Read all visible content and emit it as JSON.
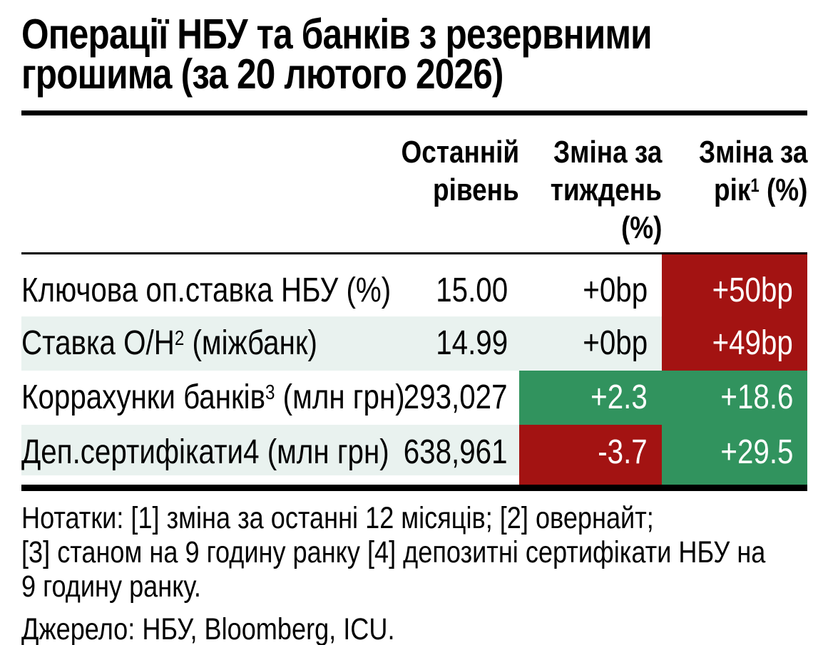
{
  "title_lines": [
    "Операції НБУ та банків з резервними",
    "грошима (за 20 лютого 2026)"
  ],
  "table": {
    "headers": {
      "level": [
        "Останній",
        "рівень"
      ],
      "week": [
        "Зміна за",
        "тиждень",
        "(%)"
      ],
      "year_line1": "Зміна за",
      "year_line2_pre": "рік",
      "year_line2_sup": "1",
      "year_line2_post": " (%)"
    },
    "rows": [
      {
        "label_pre": "Ключова оп.ставка НБУ (%)",
        "label_sup": "",
        "label_post": "",
        "level": "15.00",
        "week": "+0bp",
        "week_bg": "",
        "year": "+50bp",
        "year_bg": "red"
      },
      {
        "label_pre": "Ставка О/Н",
        "label_sup": "2",
        "label_post": " (міжбанк)",
        "level": "14.99",
        "week": "+0bp",
        "week_bg": "",
        "year": "+49bp",
        "year_bg": "red"
      },
      {
        "label_pre": "Коррахунки банків",
        "label_sup": "3",
        "label_post": " (млн грн)",
        "level": "293,027",
        "week": "+2.3",
        "week_bg": "green",
        "year": "+18.6",
        "year_bg": "green"
      },
      {
        "label_pre": "Деп.сертифікати4",
        "label_sup": "",
        "label_post": " (млн грн)",
        "level": "638,961",
        "week": "-3.7",
        "week_bg": "red",
        "year": "+29.5",
        "year_bg": "green"
      }
    ]
  },
  "notes_lines": [
    "Нотатки: [1] зміна за останні 12 місяців; [2] овернайт;",
    "[3] станом на 9 годину ранку [4] депозитні сертифікати НБУ на",
    "9 годину ранку."
  ],
  "source": "Джерело: НБУ, Bloomberg, ICU.",
  "colors": {
    "red": "#a31312",
    "green": "#31935e",
    "stripe": "#e9f2ef"
  },
  "chart_data": {
    "type": "table",
    "title": "Операції НБУ та банків з резервними грошима (за 20 лютого 2026)",
    "columns": [
      "",
      "Останній рівень",
      "Зміна за тиждень (%)",
      "Зміна за рік [1] (%)"
    ],
    "rows": [
      [
        "Ключова оп.ставка НБУ (%)",
        "15.00",
        "+0bp",
        "+50bp"
      ],
      [
        "Ставка О/Н [2] (міжбанк)",
        "14.99",
        "+0bp",
        "+49bp"
      ],
      [
        "Коррахунки банків [3] (млн грн)",
        "293,027",
        "+2.3",
        "+18.6"
      ],
      [
        "Деп.сертифікати4 (млн грн)",
        "638,961",
        "-3.7",
        "+29.5"
      ]
    ]
  }
}
